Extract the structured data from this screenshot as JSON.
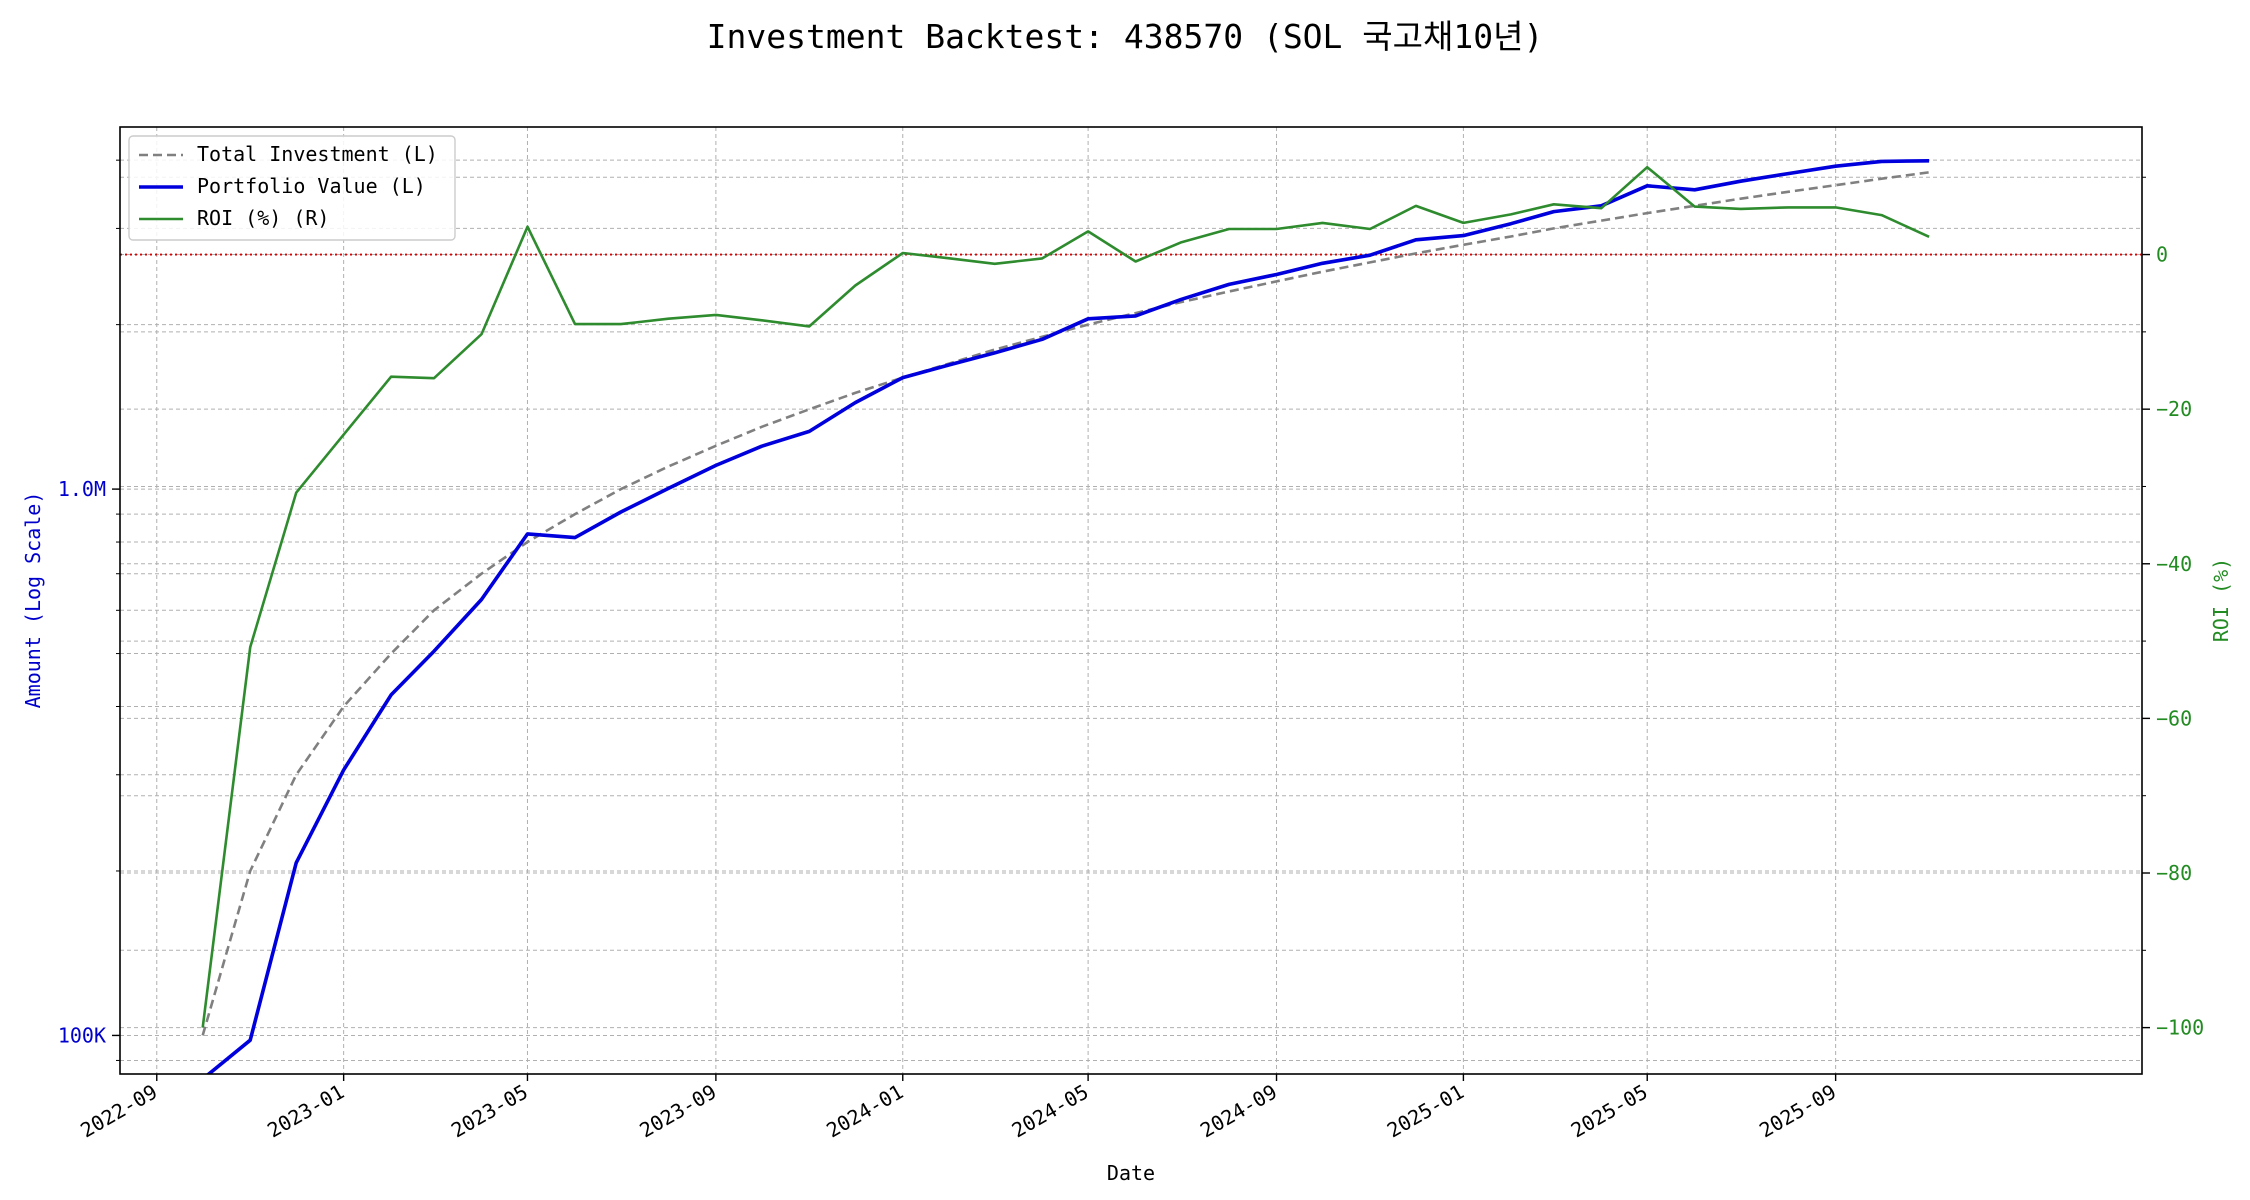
{
  "colors": {
    "total_investment": "#808080",
    "portfolio_value": "#0000dd",
    "roi": "#2e8b2e",
    "zero_line": "#dd0000",
    "left_axis_text": "#0000cc",
    "right_axis_text": "#228b22",
    "grid": "#b0b0b0"
  },
  "chart_data": {
    "type": "line",
    "title": "Investment Backtest: 438570 (SOL 국고채10년)",
    "xlabel": "Date",
    "ylabel_left": "Amount (Log Scale)",
    "ylabel_right": "ROI (%)",
    "left_scale": "log",
    "left_ylim": [
      85000,
      4600000
    ],
    "right_ylim": [
      -106,
      16.5
    ],
    "xlim": [
      "2022-08-08",
      "2026-03-20"
    ],
    "grid": true,
    "legend_position": "upper-left",
    "x_tick_labels": [
      "2022-09",
      "2023-01",
      "2023-05",
      "2023-09",
      "2024-01",
      "2024-05",
      "2024-09",
      "2025-01",
      "2025-05",
      "2025-09"
    ],
    "x_tick_dates": [
      "2022-09-01",
      "2023-01-01",
      "2023-05-01",
      "2023-09-01",
      "2024-01-01",
      "2024-05-01",
      "2024-09-01",
      "2025-01-01",
      "2025-05-01",
      "2025-09-01"
    ],
    "left_tick_labels": [
      "100K",
      "1.0M"
    ],
    "left_tick_values": [
      100000,
      1000000
    ],
    "right_tick_labels": [
      "0",
      "−20",
      "−40",
      "−60",
      "−80",
      "−100"
    ],
    "right_tick_values": [
      0,
      -20,
      -40,
      -60,
      -80,
      -100
    ],
    "reference_line": {
      "axis": "right",
      "value": 0,
      "style": "dotted"
    },
    "series": [
      {
        "name": "Total Investment (L)",
        "axis": "left",
        "style": "dashed",
        "points": [
          [
            "2022-10-01",
            100000
          ],
          [
            "2022-11-01",
            200000
          ],
          [
            "2022-12-01",
            300000
          ],
          [
            "2023-01-01",
            400000
          ],
          [
            "2023-02-01",
            500000
          ],
          [
            "2023-03-01",
            600000
          ],
          [
            "2023-04-01",
            700000
          ],
          [
            "2023-05-01",
            800000
          ],
          [
            "2023-06-01",
            900000
          ],
          [
            "2023-07-01",
            1000000
          ],
          [
            "2023-08-01",
            1100000
          ],
          [
            "2023-09-01",
            1200000
          ],
          [
            "2023-10-01",
            1300000
          ],
          [
            "2023-11-01",
            1400000
          ],
          [
            "2023-12-01",
            1500000
          ],
          [
            "2024-01-01",
            1600000
          ],
          [
            "2024-02-01",
            1700000
          ],
          [
            "2024-03-01",
            1800000
          ],
          [
            "2024-04-01",
            1900000
          ],
          [
            "2024-05-01",
            2000000
          ],
          [
            "2024-06-01",
            2100000
          ],
          [
            "2024-07-01",
            2200000
          ],
          [
            "2024-08-01",
            2300000
          ],
          [
            "2024-09-01",
            2400000
          ],
          [
            "2024-10-01",
            2500000
          ],
          [
            "2024-11-01",
            2600000
          ],
          [
            "2024-12-01",
            2700000
          ],
          [
            "2025-01-01",
            2800000
          ],
          [
            "2025-02-01",
            2900000
          ],
          [
            "2025-03-01",
            3000000
          ],
          [
            "2025-04-01",
            3100000
          ],
          [
            "2025-05-01",
            3200000
          ],
          [
            "2025-06-01",
            3300000
          ],
          [
            "2025-07-01",
            3400000
          ],
          [
            "2025-08-01",
            3500000
          ],
          [
            "2025-09-01",
            3600000
          ],
          [
            "2025-10-01",
            3700000
          ],
          [
            "2025-11-01",
            3800000
          ]
        ]
      },
      {
        "name": "Portfolio Value (L)",
        "axis": "left",
        "style": "solid",
        "points": [
          [
            "2022-10-01",
            0
          ],
          [
            "2022-11-01",
            98000
          ],
          [
            "2022-12-01",
            207000
          ],
          [
            "2023-01-01",
            306000
          ],
          [
            "2023-02-01",
            420000
          ],
          [
            "2023-03-01",
            505000
          ],
          [
            "2023-04-01",
            628000
          ],
          [
            "2023-05-01",
            828000
          ],
          [
            "2023-06-01",
            815000
          ],
          [
            "2023-07-01",
            908000
          ],
          [
            "2023-08-01",
            1003000
          ],
          [
            "2023-09-01",
            1105000
          ],
          [
            "2023-10-01",
            1198000
          ],
          [
            "2023-11-01",
            1275000
          ],
          [
            "2023-12-01",
            1440000
          ],
          [
            "2024-01-01",
            1600000
          ],
          [
            "2024-02-01",
            1690000
          ],
          [
            "2024-03-01",
            1775000
          ],
          [
            "2024-04-01",
            1880000
          ],
          [
            "2024-05-01",
            2050000
          ],
          [
            "2024-06-01",
            2075000
          ],
          [
            "2024-07-01",
            2225000
          ],
          [
            "2024-08-01",
            2370000
          ],
          [
            "2024-09-01",
            2470000
          ],
          [
            "2024-10-01",
            2590000
          ],
          [
            "2024-11-01",
            2680000
          ],
          [
            "2024-12-01",
            2860000
          ],
          [
            "2025-01-01",
            2910000
          ],
          [
            "2025-02-01",
            3060000
          ],
          [
            "2025-03-01",
            3220000
          ],
          [
            "2025-04-01",
            3300000
          ],
          [
            "2025-05-01",
            3590000
          ],
          [
            "2025-06-01",
            3530000
          ],
          [
            "2025-07-01",
            3660000
          ],
          [
            "2025-08-01",
            3780000
          ],
          [
            "2025-09-01",
            3900000
          ],
          [
            "2025-10-01",
            3980000
          ],
          [
            "2025-11-01",
            3990000
          ]
        ]
      },
      {
        "name": "ROI (%) (R)",
        "axis": "right",
        "style": "solid",
        "points": [
          [
            "2022-10-01",
            -100
          ],
          [
            "2022-11-01",
            -50.8
          ],
          [
            "2022-12-01",
            -30.8
          ],
          [
            "2023-01-01",
            -23.3
          ],
          [
            "2023-02-01",
            -15.8
          ],
          [
            "2023-03-01",
            -16.0
          ],
          [
            "2023-04-01",
            -10.3
          ],
          [
            "2023-05-01",
            3.6
          ],
          [
            "2023-06-01",
            -9.0
          ],
          [
            "2023-07-01",
            -9.0
          ],
          [
            "2023-08-01",
            -8.3
          ],
          [
            "2023-09-01",
            -7.8
          ],
          [
            "2023-10-01",
            -8.5
          ],
          [
            "2023-11-01",
            -9.3
          ],
          [
            "2023-12-01",
            -4.0
          ],
          [
            "2024-01-01",
            0.2
          ],
          [
            "2024-02-01",
            -0.5
          ],
          [
            "2024-03-01",
            -1.2
          ],
          [
            "2024-04-01",
            -0.5
          ],
          [
            "2024-05-01",
            3.0
          ],
          [
            "2024-06-01",
            -0.9
          ],
          [
            "2024-07-01",
            1.6
          ],
          [
            "2024-08-01",
            3.3
          ],
          [
            "2024-09-01",
            3.3
          ],
          [
            "2024-10-01",
            4.1
          ],
          [
            "2024-11-01",
            3.3
          ],
          [
            "2024-12-01",
            6.3
          ],
          [
            "2025-01-01",
            4.1
          ],
          [
            "2025-02-01",
            5.2
          ],
          [
            "2025-03-01",
            6.5
          ],
          [
            "2025-04-01",
            6.0
          ],
          [
            "2025-05-01",
            11.3
          ],
          [
            "2025-06-01",
            6.2
          ],
          [
            "2025-07-01",
            5.9
          ],
          [
            "2025-08-01",
            6.1
          ],
          [
            "2025-09-01",
            6.1
          ],
          [
            "2025-10-01",
            5.1
          ],
          [
            "2025-11-01",
            2.3
          ]
        ]
      }
    ]
  }
}
